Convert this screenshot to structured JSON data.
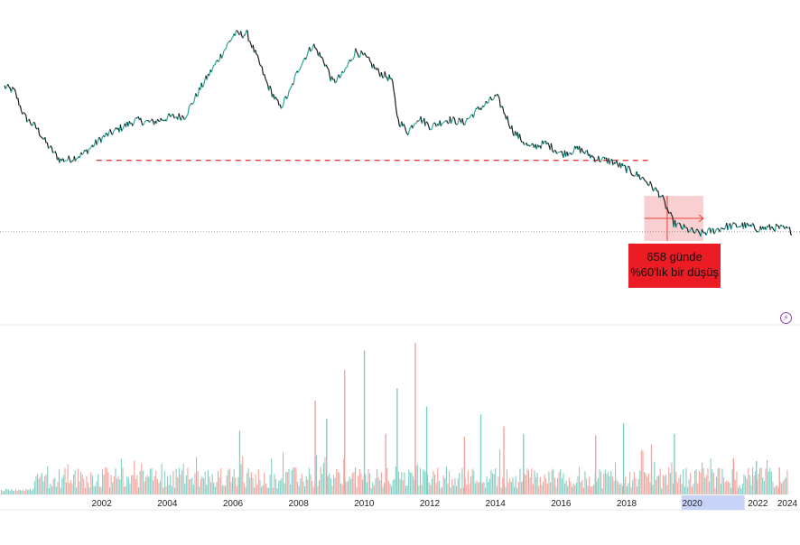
{
  "chart_data": [
    {
      "type": "line",
      "title": "",
      "xlabel": "",
      "ylabel": "",
      "xlim": [
        2000.0,
        2024.0
      ],
      "x": [
        2000.0,
        2000.3,
        2000.6,
        2001.0,
        2001.3,
        2001.7,
        2002.0,
        2002.4,
        2002.7,
        2003.0,
        2003.5,
        2004.0,
        2004.5,
        2005.0,
        2005.5,
        2006.0,
        2006.5,
        2007.0,
        2007.4,
        2007.8,
        2008.0,
        2008.4,
        2008.7,
        2009.0,
        2009.4,
        2009.8,
        2010.0,
        2010.3,
        2010.7,
        2011.0,
        2011.4,
        2011.8,
        2012.0,
        2012.3,
        2012.6,
        2013.0,
        2013.5,
        2014.0,
        2014.5,
        2015.0,
        2015.5,
        2016.0,
        2016.5,
        2017.0,
        2017.5,
        2018.0,
        2018.5,
        2019.0,
        2019.5,
        2019.8,
        2020.0,
        2020.4,
        2020.8,
        2021.2,
        2021.6,
        2022.0,
        2022.5,
        2023.0,
        2023.5,
        2024.0
      ],
      "series": [
        {
          "values": [
            100,
            96,
            72,
            60,
            45,
            30,
            31,
            36,
            44,
            52,
            60,
            68,
            66,
            71,
            72,
            100,
            125,
            150,
            150,
            120,
            103,
            80,
            95,
            120,
            140,
            121,
            104,
            111,
            134,
            128,
            114,
            107,
            68,
            57,
            71,
            62,
            69,
            66,
            80,
            91,
            58,
            42,
            46,
            36,
            41,
            32,
            29,
            21,
            12,
            3,
            -3,
            -30,
            -36,
            -40,
            -37,
            -33,
            -32,
            -35,
            -34,
            -37
          ]
        }
      ],
      "reference_lines": [
        {
          "style": "dashed",
          "color": "#e8403a",
          "from_x": 2002.8,
          "to_x": 2019.7,
          "y": 30
        }
      ],
      "current_value_line": {
        "style": "dotted",
        "y": -38
      },
      "highlight_zone": {
        "x_from": 2019.5,
        "x_to": 2021.3,
        "color": "#f5b7b9"
      },
      "annotation": {
        "line1": "658 günde",
        "line2": "%60'lık bir düşüş"
      }
    },
    {
      "type": "bar",
      "title": "",
      "xlabel": "",
      "ylabel": "",
      "xlim": [
        2000.0,
        2024.0
      ],
      "up_color": "#7fcfc4",
      "down_color": "#f5a39c",
      "highlight_tick": "2020",
      "highlight_color": "#c7d4f7",
      "x_ticks": [
        "2002",
        "2004",
        "2006",
        "2008",
        "2010",
        "2012",
        "2014",
        "2016",
        "2018",
        "2020",
        "2022",
        "2024"
      ],
      "x_tick_values": [
        2002,
        2004,
        2006,
        2008,
        2010,
        2012,
        2014,
        2016,
        2018,
        2020,
        2022,
        2024
      ],
      "volume_spikes": [
        {
          "x": 2007.15,
          "value": 42
        },
        {
          "x": 2009.45,
          "value": 62
        },
        {
          "x": 2009.8,
          "value": 50
        },
        {
          "x": 2010.35,
          "value": 82
        },
        {
          "x": 2010.95,
          "value": 95
        },
        {
          "x": 2011.6,
          "value": 40
        },
        {
          "x": 2011.95,
          "value": 70
        },
        {
          "x": 2012.5,
          "value": 100
        },
        {
          "x": 2012.85,
          "value": 58
        },
        {
          "x": 2014.0,
          "value": 38
        },
        {
          "x": 2014.5,
          "value": 53
        },
        {
          "x": 2015.2,
          "value": 45
        },
        {
          "x": 2015.8,
          "value": 40
        },
        {
          "x": 2018.0,
          "value": 39
        },
        {
          "x": 2018.85,
          "value": 47
        },
        {
          "x": 2019.7,
          "value": 33
        },
        {
          "x": 2020.4,
          "value": 40
        },
        {
          "x": 2022.2,
          "value": 24
        },
        {
          "x": 2022.9,
          "value": 22
        },
        {
          "x": 2023.6,
          "value": 18
        }
      ]
    }
  ]
}
